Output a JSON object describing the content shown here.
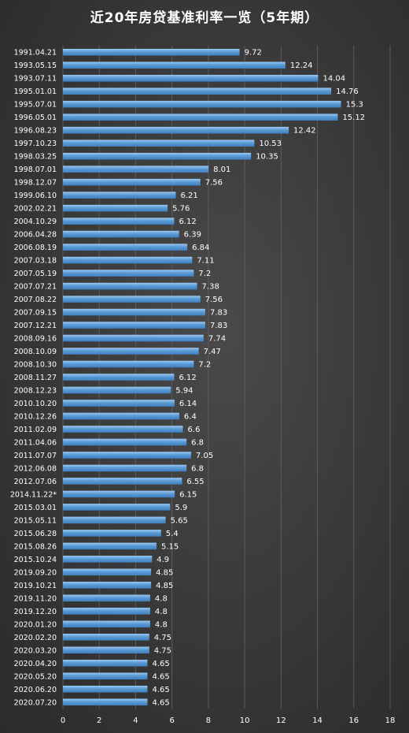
{
  "chart_data": {
    "type": "bar",
    "orientation": "horizontal",
    "title": "近20年房贷基准利率一览（5年期）",
    "categories": [
      "1991.04.21",
      "1993.05.15",
      "1993.07.11",
      "1995.01.01",
      "1995.07.01",
      "1996.05.01",
      "1996.08.23",
      "1997.10.23",
      "1998.03.25",
      "1998.07.01",
      "1998.12.07",
      "1999.06.10",
      "2002.02.21",
      "2004.10.29",
      "2006.04.28",
      "2006.08.19",
      "2007.03.18",
      "2007.05.19",
      "2007.07.21",
      "2007.08.22",
      "2007.09.15",
      "2007.12.21",
      "2008.09.16",
      "2008.10.09",
      "2008.10.30",
      "2008.11.27",
      "2008.12.23",
      "2010.10.20",
      "2010.12.26",
      "2011.02.09",
      "2011.04.06",
      "2011.07.07",
      "2012.06.08",
      "2012.07.06",
      "2014.11.22*",
      "2015.03.01",
      "2015.05.11",
      "2015.06.28",
      "2015.08.26",
      "2015.10.24",
      "2019.09.20",
      "2019.10.21",
      "2019.11.20",
      "2019.12.20",
      "2020.01.20",
      "2020.02.20",
      "2020.03.20",
      "2020.04.20",
      "2020.05.20",
      "2020.06.20",
      "2020.07.20"
    ],
    "values": [
      9.72,
      12.24,
      14.04,
      14.76,
      15.3,
      15.12,
      12.42,
      10.53,
      10.35,
      8.01,
      7.56,
      6.21,
      5.76,
      6.12,
      6.39,
      6.84,
      7.11,
      7.2,
      7.38,
      7.56,
      7.83,
      7.83,
      7.74,
      7.47,
      7.2,
      6.12,
      5.94,
      6.14,
      6.4,
      6.6,
      6.8,
      7.05,
      6.8,
      6.55,
      6.15,
      5.9,
      5.65,
      5.4,
      5.15,
      4.9,
      4.85,
      4.85,
      4.8,
      4.8,
      4.8,
      4.75,
      4.75,
      4.65,
      4.65,
      4.65,
      4.65
    ],
    "value_labels": [
      "9.72",
      "12.24",
      "14.04",
      "14.76",
      "15.3",
      "15.12",
      "12.42",
      "10.53",
      "10.35",
      "8.01",
      "7.56",
      "6.21",
      "5.76",
      "6.12",
      "6.39",
      "6.84",
      "7.11",
      "7.2",
      "7.38",
      "7.56",
      "7.83",
      "7.83",
      "7.74",
      "7.47",
      "7.2",
      "6.12",
      "5.94",
      "6.14",
      "6.4",
      "6.6",
      "6.8",
      "7.05",
      "6.8",
      "6.55",
      "6.15",
      "5.9",
      "5.65",
      "5.4",
      "5.15",
      "4.9",
      "4.85",
      "4.85",
      "4.8",
      "4.8",
      "4.8",
      "4.75",
      "4.75",
      "4.65",
      "4.65",
      "4.65",
      "4.65"
    ],
    "xlim": [
      0,
      18
    ],
    "xticks": [
      "0",
      "2",
      "4",
      "6",
      "8",
      "10",
      "12",
      "14",
      "16",
      "18"
    ],
    "grid": true,
    "legend": "none",
    "colors": {
      "bar": "#5b9bd5",
      "bar_light": "#8fc0ee",
      "background": "#3b3b3b",
      "grid": "#5c5c5c",
      "text": "#ffffff"
    }
  }
}
